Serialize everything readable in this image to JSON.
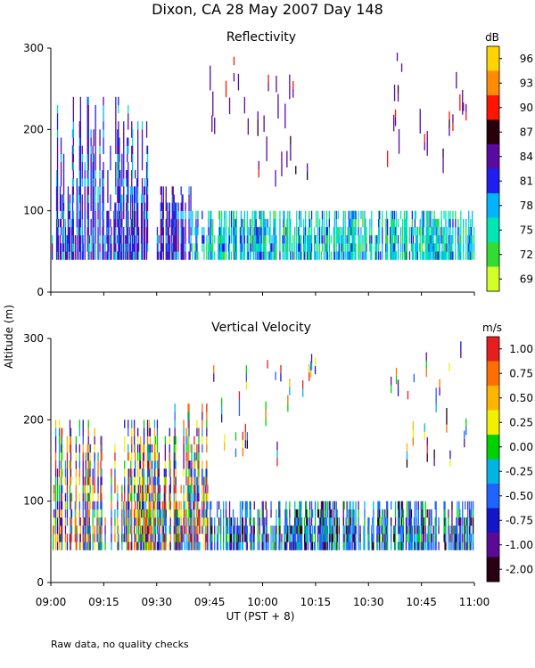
{
  "title": "Dixon, CA 28 May 2007  Day 148",
  "ylabel": "Altitude (m)",
  "xlabel": "UT  (PST + 8)",
  "note": "Raw data, no quality checks",
  "x_ticks": [
    "09:00",
    "09:15",
    "09:30",
    "09:45",
    "10:00",
    "10:15",
    "10:30",
    "10:45",
    "11:00"
  ],
  "chart_data": [
    {
      "type": "heatmap",
      "title": "Reflectivity",
      "colorbar_unit": "dB",
      "colorbar_ticks": [
        "96",
        "93",
        "90",
        "87",
        "84",
        "81",
        "78",
        "75",
        "72",
        "69"
      ],
      "colorbar_colors": [
        "#ffd400",
        "#ff8c00",
        "#ff1400",
        "#28000a",
        "#5a0aa0",
        "#1e1ef0",
        "#00b4ff",
        "#00e6b4",
        "#32dc32",
        "#d2ff28"
      ],
      "xlim_minutes": [
        0,
        120
      ],
      "ylim": [
        0,
        300
      ],
      "y_ticks": [
        "0",
        "100",
        "200",
        "300"
      ],
      "clusters": [
        {
          "x": [
            0,
            28
          ],
          "y": [
            40,
            240
          ],
          "dominant": "blue/purple",
          "values_dB": [
            72,
            84
          ]
        },
        {
          "x": [
            30,
            40
          ],
          "y": [
            40,
            130
          ],
          "dominant": "purple",
          "values_dB": [
            75,
            84
          ]
        },
        {
          "x": [
            40,
            120
          ],
          "y": [
            40,
            100
          ],
          "dominant": "green/cyan",
          "values_dB": [
            72,
            78
          ]
        },
        {
          "x": [
            45,
            75
          ],
          "y": [
            140,
            280
          ],
          "dominant": "purple",
          "values_dB": [
            84,
            87
          ]
        },
        {
          "x": [
            95,
            118
          ],
          "y": [
            150,
            300
          ],
          "dominant": "purple",
          "values_dB": [
            84,
            90
          ]
        }
      ]
    },
    {
      "type": "heatmap",
      "title": "Vertical Velocity",
      "colorbar_unit": "m/s",
      "colorbar_ticks": [
        "1.00",
        "0.75",
        "0.50",
        "0.25",
        "0.00",
        "-0.25",
        "-0.50",
        "-0.75",
        "-1.00",
        "-2.00"
      ],
      "colorbar_colors": [
        "#e61e1e",
        "#ff6e00",
        "#ffb400",
        "#f0f000",
        "#00d200",
        "#00b4e6",
        "#1e64ff",
        "#1414c8",
        "#5a0a96",
        "#280012"
      ],
      "xlim_minutes": [
        0,
        120
      ],
      "ylim": [
        0,
        300
      ],
      "y_ticks": [
        "0",
        "100",
        "200",
        "300"
      ],
      "clusters": [
        {
          "x": [
            0,
            35
          ],
          "y": [
            40,
            200
          ],
          "dominant": "blue/green",
          "values_ms": [
            -0.75,
            0.5
          ]
        },
        {
          "x": [
            35,
            45
          ],
          "y": [
            40,
            220
          ],
          "dominant": "mixed",
          "values_ms": [
            -1.0,
            0.75
          ]
        },
        {
          "x": [
            45,
            120
          ],
          "y": [
            40,
            100
          ],
          "dominant": "blue/cyan",
          "values_ms": [
            -1.0,
            0.25
          ]
        },
        {
          "x": [
            45,
            75
          ],
          "y": [
            150,
            280
          ],
          "dominant": "mixed",
          "values_ms": [
            -0.5,
            0.75
          ]
        },
        {
          "x": [
            95,
            118
          ],
          "y": [
            150,
            300
          ],
          "dominant": "purple/red",
          "values_ms": [
            -1.0,
            1.0
          ]
        }
      ]
    }
  ]
}
